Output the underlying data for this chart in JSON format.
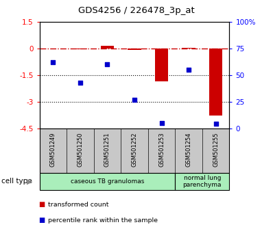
{
  "title": "GDS4256 / 226478_3p_at",
  "samples": [
    "GSM501249",
    "GSM501250",
    "GSM501251",
    "GSM501252",
    "GSM501253",
    "GSM501254",
    "GSM501255"
  ],
  "transformed_count": [
    0.0,
    -0.05,
    0.15,
    -0.1,
    -1.85,
    0.05,
    -3.8
  ],
  "percentile_rank": [
    62,
    43,
    60,
    27,
    5,
    55,
    4
  ],
  "ylim_left": [
    -4.5,
    1.5
  ],
  "ylim_right": [
    0,
    100
  ],
  "yticks_left": [
    1.5,
    0,
    -1.5,
    -3,
    -4.5
  ],
  "yticks_right": [
    100,
    75,
    50,
    25,
    0
  ],
  "ytick_labels_left": [
    "1.5",
    "0",
    "-1.5",
    "-3",
    "-4.5"
  ],
  "ytick_labels_right": [
    "100%",
    "75",
    "50",
    "25",
    "0"
  ],
  "hlines": [
    -1.5,
    -3.0
  ],
  "bar_color": "#CC0000",
  "scatter_color": "#0000CC",
  "dashed_line_color": "#CC0000",
  "bar_width": 0.5,
  "gray_box_color": "#C8C8C8",
  "green_color": "#AAEEBB",
  "cell_type_groups": [
    {
      "label": "caseous TB granulomas",
      "start": 0,
      "end": 4
    },
    {
      "label": "normal lung\nparenchyma",
      "start": 5,
      "end": 6
    }
  ]
}
